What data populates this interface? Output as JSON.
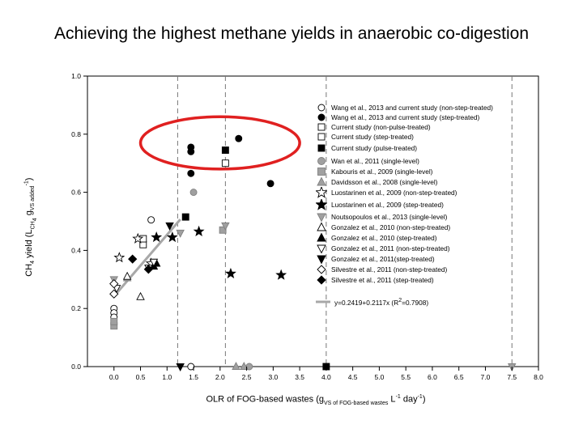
{
  "page": {
    "title": "Achieving the highest methane yields in anaerobic co-digestion"
  },
  "chart_data": {
    "type": "scatter",
    "title": "",
    "xlabel": {
      "prefix": "OLR of FOG-based wastes (g",
      "sub": "VS of FOG-based wastes",
      "mid": " L",
      "sup": "-1",
      "mid2": " day",
      "sup2": "-1",
      "suffix": ")"
    },
    "ylabel": {
      "prefix": "CH",
      "sub1": "4",
      "mid": " yield (L",
      "sub2": "CH",
      "sub2b": "4",
      "mid2": " g",
      "sub3": "VS added",
      "sup": "-1",
      "suffix": ")"
    },
    "xlim": [
      -0.5,
      8.0
    ],
    "ylim": [
      0.0,
      1.0
    ],
    "x_ticks": [
      "0.0",
      "0.5",
      "1.0",
      "1.5",
      "2.0",
      "2.5",
      "3.0",
      "3.5",
      "4.0",
      "4.5",
      "5.0",
      "5.5",
      "6.0",
      "6.5",
      "7.0",
      "7.5",
      "8.0"
    ],
    "x_tick_values": [
      0.0,
      0.5,
      1.0,
      1.5,
      2.0,
      2.5,
      3.0,
      3.5,
      4.0,
      4.5,
      5.0,
      5.5,
      6.0,
      6.5,
      7.0,
      7.5,
      8.0
    ],
    "y_ticks": [
      "0.0",
      "0.2",
      "0.4",
      "0.6",
      "0.8",
      "1.0"
    ],
    "y_tick_values": [
      0.0,
      0.2,
      0.4,
      0.6,
      0.8,
      1.0
    ],
    "vertical_reference_lines": [
      1.2,
      2.1,
      4.0,
      7.5
    ],
    "highlight_ellipse": {
      "center": [
        2.0,
        0.77
      ],
      "radius": [
        1.5,
        0.09
      ],
      "color": "#e02020"
    },
    "legend_placement": "right",
    "series": [
      {
        "name": "Wang et al., 2013 and current study (non-step-treated)",
        "marker": "circle",
        "fill": "#ffffff",
        "points": [
          [
            0.0,
            0.2
          ],
          [
            0.0,
            0.185
          ],
          [
            0.0,
            0.17
          ],
          [
            0.7,
            0.505
          ],
          [
            1.45,
            0.0
          ]
        ]
      },
      {
        "name": "Wang et al., 2013 and current study (step-treated)",
        "marker": "circle",
        "fill": "#000000",
        "points": [
          [
            1.45,
            0.755
          ],
          [
            1.45,
            0.74
          ],
          [
            1.45,
            0.665
          ],
          [
            2.35,
            0.785
          ],
          [
            2.95,
            0.63
          ]
        ]
      },
      {
        "name": "Current study (non-pulse-treated)",
        "marker": "square",
        "fill": "#ffffff",
        "points": [
          [
            0.55,
            0.42
          ],
          [
            0.55,
            0.44
          ]
        ]
      },
      {
        "name": "Current study (step-treated)",
        "marker": "square",
        "fill": "#ffffff",
        "points": [
          [
            2.1,
            0.7
          ]
        ]
      },
      {
        "name": "Current study (pulse-treated)",
        "marker": "square",
        "fill": "#000000",
        "points": [
          [
            1.35,
            0.515
          ],
          [
            2.1,
            0.745
          ],
          [
            4.0,
            0.0
          ]
        ]
      },
      {
        "name": "Wan et al., 2011 (single-level)",
        "marker": "circle",
        "fill": "#a0a0a0",
        "points": [
          [
            1.5,
            0.6
          ],
          [
            2.55,
            0.0
          ]
        ]
      },
      {
        "name": "Kabouris et al., 2009 (single-level)",
        "marker": "square",
        "fill": "#a0a0a0",
        "points": [
          [
            0.0,
            0.14
          ],
          [
            0.0,
            0.155
          ],
          [
            2.05,
            0.47
          ]
        ]
      },
      {
        "name": "Davidsson et al., 2008 (single-level)",
        "marker": "triangle-up",
        "fill": "#a0a0a0",
        "points": [
          [
            0.25,
            0.305
          ],
          [
            2.3,
            0.0
          ],
          [
            2.45,
            0.0
          ]
        ]
      },
      {
        "name": "Luostarinen et al., 2009 (non-step-treated)",
        "marker": "star",
        "fill": "#ffffff",
        "points": [
          [
            0.1,
            0.375
          ],
          [
            0.45,
            0.44
          ],
          [
            0.7,
            0.355
          ]
        ]
      },
      {
        "name": "Luostarinen et al., 2009 (step-treated)",
        "marker": "star",
        "fill": "#000000",
        "points": [
          [
            0.8,
            0.445
          ],
          [
            1.1,
            0.445
          ],
          [
            1.6,
            0.465
          ],
          [
            2.2,
            0.32
          ],
          [
            3.15,
            0.315
          ]
        ]
      },
      {
        "name": "Noutsopoulos et al., 2013 (single-level)",
        "marker": "triangle-down",
        "fill": "#a0a0a0",
        "points": [
          [
            0.0,
            0.3
          ],
          [
            1.25,
            0.46
          ],
          [
            2.1,
            0.485
          ],
          [
            7.5,
            0.0
          ]
        ]
      },
      {
        "name": "Gonzalez et al., 2010 (non-step-treated)",
        "marker": "triangle-up",
        "fill": "#ffffff",
        "points": [
          [
            0.5,
            0.24
          ],
          [
            0.25,
            0.31
          ]
        ]
      },
      {
        "name": "Gonzalez et al., 2010 (step-treated)",
        "marker": "triangle-up",
        "fill": "#000000",
        "points": [
          [
            0.8,
            0.355
          ],
          [
            0.75,
            0.345
          ]
        ]
      },
      {
        "name": "Gonzalez et al., 2011 (non-step-treated)",
        "marker": "triangle-down",
        "fill": "#ffffff",
        "points": [
          [
            0.05,
            0.27
          ],
          [
            0.65,
            0.34
          ],
          [
            0.75,
            0.36
          ]
        ]
      },
      {
        "name": "Gonzalez et al., 2011(step-treated)",
        "marker": "triangle-down",
        "fill": "#000000",
        "points": [
          [
            1.05,
            0.485
          ],
          [
            1.25,
            0.0
          ]
        ]
      },
      {
        "name": "Silvestre et al., 2011 (non-step-treated)",
        "marker": "diamond",
        "fill": "#ffffff",
        "points": [
          [
            0.0,
            0.25
          ],
          [
            0.0,
            0.285
          ]
        ]
      },
      {
        "name": "Silvestre et al., 2011 (step-treated)",
        "marker": "diamond",
        "fill": "#000000",
        "points": [
          [
            0.35,
            0.37
          ],
          [
            0.65,
            0.335
          ]
        ]
      }
    ],
    "regression": {
      "name": "y=0.2419+0.2117x (R",
      "name_sup": "2",
      "name_suffix": "=0.7908)",
      "intercept": 0.2419,
      "slope": 0.2117,
      "x_range": [
        0.0,
        1.25
      ],
      "color": "#a8a8a8"
    }
  }
}
